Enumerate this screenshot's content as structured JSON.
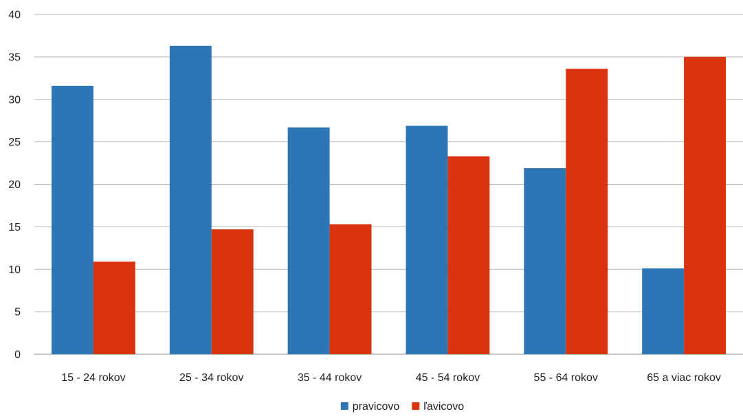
{
  "chart_data": {
    "type": "bar",
    "categories": [
      "15 - 24 rokov",
      "25 - 34 rokov",
      "35 - 44 rokov",
      "45 - 54 rokov",
      "55 - 64 rokov",
      "65 a viac rokov"
    ],
    "series": [
      {
        "name": "pravicovo",
        "color": "#2E75B6",
        "values": [
          31.6,
          36.3,
          26.7,
          26.9,
          21.9,
          10.1
        ]
      },
      {
        "name": "ľavicovo",
        "color": "#D9330F",
        "values": [
          10.9,
          14.7,
          15.3,
          23.3,
          33.6,
          35.0
        ]
      }
    ],
    "ylim": [
      0,
      40
    ],
    "yticks": [
      0,
      5,
      10,
      15,
      20,
      25,
      30,
      35,
      40
    ],
    "grid": true,
    "legend_position": "bottom",
    "title": "",
    "xlabel": "",
    "ylabel": ""
  }
}
